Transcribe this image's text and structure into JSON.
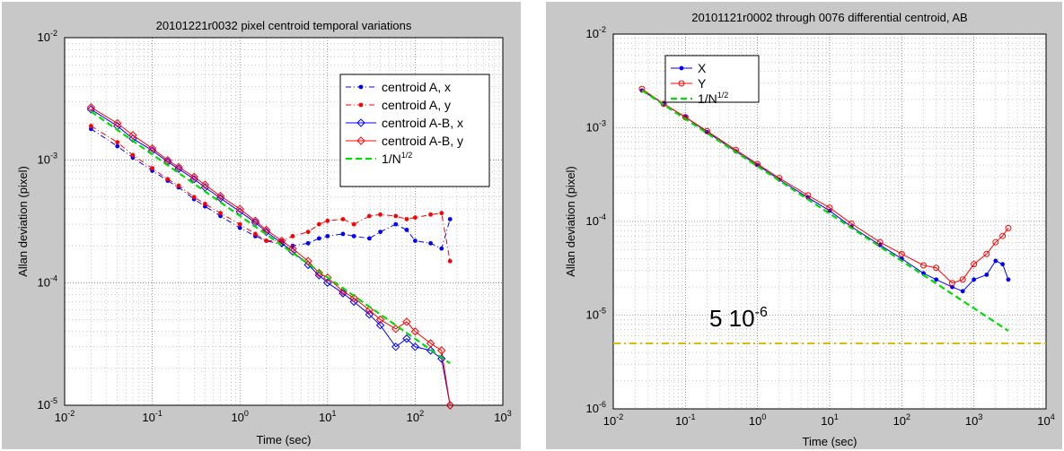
{
  "chart_data": [
    {
      "type": "line",
      "title": "20101221r0032 pixel centroid temporal variations",
      "xlabel": "Time (sec)",
      "ylabel": "Allan deviation (pixel)",
      "xscale": "log",
      "yscale": "log",
      "xlim": [
        0.01,
        1000
      ],
      "ylim": [
        1e-05,
        0.01
      ],
      "grid": true,
      "legend_position": "top-right",
      "xtick_labels": [
        {
          "base": "10",
          "exp": "-2"
        },
        {
          "base": "10",
          "exp": "-1"
        },
        {
          "base": "10",
          "exp": "0"
        },
        {
          "base": "10",
          "exp": "1"
        },
        {
          "base": "10",
          "exp": "2"
        },
        {
          "base": "10",
          "exp": "3"
        }
      ],
      "ytick_labels": [
        {
          "base": "10",
          "exp": "-5"
        },
        {
          "base": "10",
          "exp": "-4"
        },
        {
          "base": "10",
          "exp": "-3"
        },
        {
          "base": "10",
          "exp": "-2"
        }
      ],
      "series": [
        {
          "name": "centroid A, x",
          "color": "#0000ff",
          "marker": "dot",
          "linestyle": "dashdot",
          "x": [
            0.02,
            0.04,
            0.06,
            0.1,
            0.15,
            0.2,
            0.3,
            0.4,
            0.6,
            1,
            1.5,
            2,
            3,
            4,
            6,
            8,
            10,
            15,
            20,
            30,
            40,
            60,
            80,
            100,
            150,
            200,
            250
          ],
          "y": [
            0.0018,
            0.0013,
            0.00105,
            0.00082,
            0.00068,
            0.0006,
            0.00048,
            0.00042,
            0.00035,
            0.00028,
            0.00024,
            0.00022,
            0.000205,
            0.0002,
            0.00021,
            0.00023,
            0.00024,
            0.00025,
            0.00024,
            0.00023,
            0.00026,
            0.0003,
            0.00027,
            0.00022,
            0.00021,
            0.00019,
            0.00033
          ]
        },
        {
          "name": "centroid A, y",
          "color": "#ff0000",
          "marker": "dot",
          "linestyle": "dashdot",
          "x": [
            0.02,
            0.04,
            0.06,
            0.1,
            0.15,
            0.2,
            0.3,
            0.4,
            0.6,
            1,
            1.5,
            2,
            3,
            4,
            6,
            8,
            10,
            15,
            20,
            30,
            40,
            60,
            80,
            100,
            150,
            200,
            250
          ],
          "y": [
            0.0019,
            0.0014,
            0.0011,
            0.00086,
            0.0007,
            0.00062,
            0.0005,
            0.00044,
            0.00037,
            0.0003,
            0.00025,
            0.00022,
            0.00022,
            0.00024,
            0.00026,
            0.0003,
            0.00032,
            0.00033,
            0.0003,
            0.00035,
            0.00036,
            0.00035,
            0.00033,
            0.00034,
            0.00036,
            0.00037,
            0.00015
          ]
        },
        {
          "name": "centroid A-B, x",
          "color": "#0000ff",
          "marker": "diamond",
          "linestyle": "solid",
          "x": [
            0.02,
            0.04,
            0.06,
            0.1,
            0.15,
            0.2,
            0.3,
            0.4,
            0.6,
            1,
            1.5,
            2,
            3,
            4,
            6,
            8,
            10,
            15,
            20,
            30,
            40,
            60,
            80,
            100,
            150,
            200,
            250
          ],
          "y": [
            0.0026,
            0.0019,
            0.0015,
            0.0012,
            0.00097,
            0.00085,
            0.0007,
            0.0006,
            0.00049,
            0.00038,
            0.00031,
            0.00026,
            0.00021,
            0.00018,
            0.00014,
            0.000115,
            0.0001,
            8.2e-05,
            7e-05,
            5.5e-05,
            4.5e-05,
            3e-05,
            3.5e-05,
            3e-05,
            2.8e-05,
            2.4e-05,
            1e-05
          ]
        },
        {
          "name": "centroid A-B, y",
          "color": "#ff0000",
          "marker": "diamond",
          "linestyle": "solid",
          "x": [
            0.02,
            0.04,
            0.06,
            0.1,
            0.15,
            0.2,
            0.3,
            0.4,
            0.6,
            1,
            1.5,
            2,
            3,
            4,
            6,
            8,
            10,
            15,
            20,
            30,
            40,
            60,
            80,
            100,
            150,
            200,
            250
          ],
          "y": [
            0.0027,
            0.002,
            0.0016,
            0.00125,
            0.001,
            0.00088,
            0.00073,
            0.00063,
            0.00051,
            0.0004,
            0.00032,
            0.00027,
            0.00022,
            0.00019,
            0.00015,
            0.00012,
            0.00011,
            8.5e-05,
            7.5e-05,
            6e-05,
            5e-05,
            4.2e-05,
            4.8e-05,
            4e-05,
            3.2e-05,
            2.8e-05,
            1e-05
          ]
        },
        {
          "name": "1/N",
          "name_sup": "1/2",
          "color": "#00dd00",
          "marker": "none",
          "linestyle": "dashed",
          "x": [
            0.02,
            250
          ],
          "y": [
            0.0025,
            2.2e-05
          ]
        }
      ]
    },
    {
      "type": "line",
      "title": "20101121r0002 through 0076 differential centroid, AB",
      "xlabel": "Time (sec)",
      "ylabel": "Allan deviation (pixel)",
      "xscale": "log",
      "yscale": "log",
      "xlim": [
        0.01,
        10000
      ],
      "ylim": [
        1e-06,
        0.01
      ],
      "grid": true,
      "legend_position": "top-left",
      "annotation": {
        "base": "5 10",
        "exp": "-6"
      },
      "reference_line": {
        "y": 5e-06,
        "color": "#ddbb00"
      },
      "xtick_labels": [
        {
          "base": "10",
          "exp": "-2"
        },
        {
          "base": "10",
          "exp": "-1"
        },
        {
          "base": "10",
          "exp": "0"
        },
        {
          "base": "10",
          "exp": "1"
        },
        {
          "base": "10",
          "exp": "2"
        },
        {
          "base": "10",
          "exp": "3"
        },
        {
          "base": "10",
          "exp": "4"
        }
      ],
      "ytick_labels": [
        {
          "base": "10",
          "exp": "-6"
        },
        {
          "base": "10",
          "exp": "-5"
        },
        {
          "base": "10",
          "exp": "-4"
        },
        {
          "base": "10",
          "exp": "-3"
        },
        {
          "base": "10",
          "exp": "-2"
        }
      ],
      "series": [
        {
          "name": "X",
          "color": "#0000ff",
          "marker": "dot",
          "linestyle": "solid",
          "x": [
            0.025,
            0.05,
            0.1,
            0.2,
            0.5,
            1,
            2,
            5,
            10,
            20,
            50,
            100,
            200,
            300,
            500,
            700,
            1000,
            1500,
            2000,
            2500,
            3000
          ],
          "y": [
            0.0025,
            0.0018,
            0.0013,
            0.0009,
            0.00056,
            0.0004,
            0.00028,
            0.00018,
            0.00013,
            8.8e-05,
            5.6e-05,
            4e-05,
            2.8e-05,
            2.4e-05,
            2e-05,
            1.8e-05,
            2.4e-05,
            2.7e-05,
            3.8e-05,
            3.5e-05,
            2.4e-05
          ]
        },
        {
          "name": "Y",
          "color": "#ff0000",
          "marker": "circle",
          "linestyle": "solid",
          "x": [
            0.025,
            0.05,
            0.1,
            0.2,
            0.5,
            1,
            2,
            5,
            10,
            20,
            50,
            100,
            200,
            300,
            500,
            700,
            1000,
            1500,
            2000,
            2500,
            3000
          ],
          "y": [
            0.0026,
            0.0018,
            0.0013,
            0.00092,
            0.00058,
            0.00041,
            0.00029,
            0.00019,
            0.00014,
            9.5e-05,
            6e-05,
            4.5e-05,
            3.4e-05,
            3.2e-05,
            2.2e-05,
            2.4e-05,
            3.5e-05,
            4.5e-05,
            6e-05,
            7e-05,
            8.5e-05
          ]
        },
        {
          "name": "1/N",
          "name_sup": "1/2",
          "color": "#00dd00",
          "marker": "none",
          "linestyle": "dashed",
          "x": [
            0.025,
            3000
          ],
          "y": [
            0.0025,
            6.8e-06
          ]
        }
      ]
    }
  ]
}
